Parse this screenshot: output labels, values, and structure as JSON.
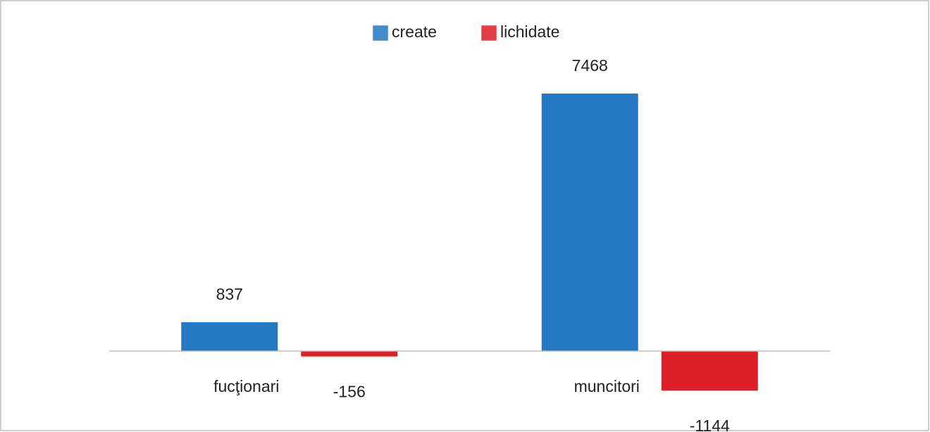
{
  "chart_data": {
    "type": "bar",
    "categories": [
      "fucţionari",
      "muncitori"
    ],
    "series": [
      {
        "name": "create",
        "color": "#2479c2",
        "values": [
          837,
          7468
        ]
      },
      {
        "name": "lichidate",
        "color": "#dc1f26",
        "values": [
          -156,
          -1144
        ]
      }
    ],
    "legend": "top"
  }
}
